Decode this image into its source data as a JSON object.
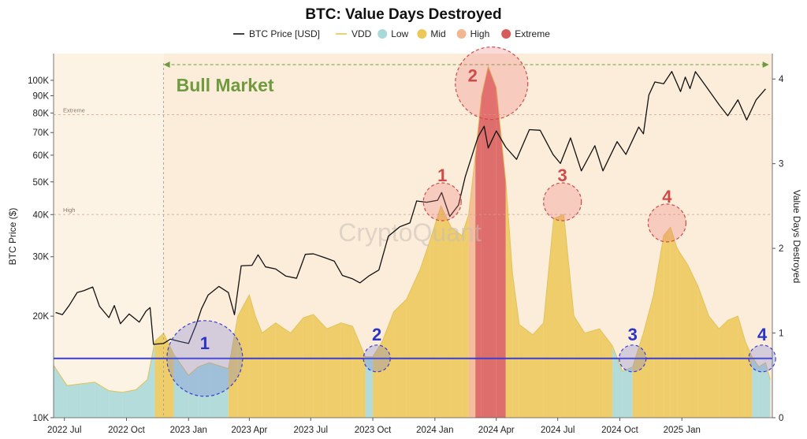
{
  "chart_data": {
    "type": "area",
    "title": "BTC: Value Days Destroyed",
    "ylabel_left": "BTC Price ($)",
    "ylabel_right": "Value Days Destroyed",
    "x_ticks": [
      "2022 Jul",
      "2022 Oct",
      "2023 Jan",
      "2023 Apr",
      "2023 Jul",
      "2023 Oct",
      "2024 Jan",
      "2024 Apr",
      "2024 Jul",
      "2024 Oct",
      "2025 Jan"
    ],
    "x_range": [
      "2022-06-15",
      "2025-05-15"
    ],
    "y_left_scale": "log",
    "y_left_range": [
      10000,
      120000
    ],
    "y_left_ticks": [
      {
        "label": "10K",
        "value": 10000
      },
      {
        "label": "20K",
        "value": 20000
      },
      {
        "label": "30K",
        "value": 30000
      },
      {
        "label": "40K",
        "value": 40000
      },
      {
        "label": "50K",
        "value": 50000
      },
      {
        "label": "60K",
        "value": 60000
      },
      {
        "label": "70K",
        "value": 70000
      },
      {
        "label": "80K",
        "value": 80000
      },
      {
        "label": "90K",
        "value": 90000
      },
      {
        "label": "100K",
        "value": 100000
      }
    ],
    "y_right_range": [
      0,
      4.3
    ],
    "y_right_ticks": [
      0,
      1,
      2,
      3,
      4
    ],
    "legend": {
      "placement": "top-center",
      "items": [
        {
          "label": "BTC Price [USD]",
          "type": "line",
          "color": "#111111"
        },
        {
          "label": "VDD",
          "type": "line",
          "color": "#e2c35a"
        },
        {
          "label": "Low",
          "type": "dot",
          "color": "#a9d8d8"
        },
        {
          "label": "Mid",
          "type": "dot",
          "color": "#ecc85a"
        },
        {
          "label": "High",
          "type": "dot",
          "color": "#f2b792"
        },
        {
          "label": "Extreme",
          "type": "dot",
          "color": "#d95c5c"
        }
      ]
    },
    "thresholds": [
      {
        "label": "Extreme",
        "vdd": 3.58
      },
      {
        "label": "High",
        "vdd": 2.4
      }
    ],
    "blue_line_vdd": 0.7,
    "bull_market": {
      "label": "Bull Market",
      "start": "2022-11-25",
      "end": "2025-05-10"
    },
    "watermark": "CryptoQuant",
    "series": [
      {
        "name": "BTC Price [USD]",
        "points": [
          [
            "2022-06-18",
            20500
          ],
          [
            "2022-06-28",
            20200
          ],
          [
            "2022-07-08",
            21500
          ],
          [
            "2022-07-20",
            23500
          ],
          [
            "2022-07-30",
            23800
          ],
          [
            "2022-08-12",
            24400
          ],
          [
            "2022-08-22",
            21400
          ],
          [
            "2022-09-05",
            19800
          ],
          [
            "2022-09-13",
            21500
          ],
          [
            "2022-09-22",
            19000
          ],
          [
            "2022-10-05",
            20300
          ],
          [
            "2022-10-20",
            19200
          ],
          [
            "2022-10-30",
            20700
          ],
          [
            "2022-11-05",
            21200
          ],
          [
            "2022-11-10",
            16500
          ],
          [
            "2022-11-25",
            16600
          ],
          [
            "2022-12-05",
            17100
          ],
          [
            "2022-12-20",
            16800
          ],
          [
            "2023-01-01",
            16600
          ],
          [
            "2023-01-12",
            18800
          ],
          [
            "2023-01-20",
            21000
          ],
          [
            "2023-01-30",
            23100
          ],
          [
            "2023-02-15",
            24500
          ],
          [
            "2023-03-01",
            23500
          ],
          [
            "2023-03-10",
            20200
          ],
          [
            "2023-03-20",
            28200
          ],
          [
            "2023-04-05",
            28300
          ],
          [
            "2023-04-14",
            30400
          ],
          [
            "2023-04-25",
            28000
          ],
          [
            "2023-05-10",
            27600
          ],
          [
            "2023-05-25",
            26300
          ],
          [
            "2023-06-10",
            25900
          ],
          [
            "2023-06-23",
            30500
          ],
          [
            "2023-07-05",
            30600
          ],
          [
            "2023-07-20",
            29900
          ],
          [
            "2023-08-05",
            29100
          ],
          [
            "2023-08-17",
            26400
          ],
          [
            "2023-09-01",
            25800
          ],
          [
            "2023-09-12",
            25100
          ],
          [
            "2023-09-25",
            26300
          ],
          [
            "2023-10-10",
            27400
          ],
          [
            "2023-10-24",
            34500
          ],
          [
            "2023-11-10",
            36800
          ],
          [
            "2023-11-25",
            37800
          ],
          [
            "2023-12-05",
            43900
          ],
          [
            "2023-12-20",
            43500
          ],
          [
            "2024-01-05",
            44100
          ],
          [
            "2024-01-11",
            46500
          ],
          [
            "2024-01-23",
            39500
          ],
          [
            "2024-02-05",
            42700
          ],
          [
            "2024-02-15",
            51800
          ],
          [
            "2024-02-28",
            62500
          ],
          [
            "2024-03-05",
            68000
          ],
          [
            "2024-03-14",
            73100
          ],
          [
            "2024-03-20",
            63000
          ],
          [
            "2024-04-01",
            70800
          ],
          [
            "2024-04-15",
            63400
          ],
          [
            "2024-05-01",
            58300
          ],
          [
            "2024-05-20",
            71400
          ],
          [
            "2024-06-05",
            71100
          ],
          [
            "2024-06-24",
            60300
          ],
          [
            "2024-07-05",
            56700
          ],
          [
            "2024-07-20",
            67500
          ],
          [
            "2024-08-05",
            53900
          ],
          [
            "2024-08-25",
            64000
          ],
          [
            "2024-09-06",
            53900
          ],
          [
            "2024-09-27",
            65800
          ],
          [
            "2024-10-10",
            60300
          ],
          [
            "2024-10-29",
            72700
          ],
          [
            "2024-11-05",
            69400
          ],
          [
            "2024-11-13",
            90400
          ],
          [
            "2024-11-22",
            98900
          ],
          [
            "2024-12-05",
            97700
          ],
          [
            "2024-12-17",
            106200
          ],
          [
            "2024-12-30",
            92600
          ],
          [
            "2025-01-06",
            102200
          ],
          [
            "2025-01-13",
            94500
          ],
          [
            "2025-01-21",
            106100
          ],
          [
            "2025-02-03",
            97700
          ],
          [
            "2025-02-26",
            84200
          ],
          [
            "2025-03-10",
            78500
          ],
          [
            "2025-03-25",
            87500
          ],
          [
            "2025-04-07",
            76300
          ],
          [
            "2025-04-21",
            87500
          ],
          [
            "2025-05-05",
            94300
          ]
        ]
      },
      {
        "name": "VDD",
        "points": [
          [
            "2022-06-15",
            0.62
          ],
          [
            "2022-07-05",
            0.38
          ],
          [
            "2022-07-25",
            0.4
          ],
          [
            "2022-08-15",
            0.42
          ],
          [
            "2022-09-05",
            0.32
          ],
          [
            "2022-09-25",
            0.3
          ],
          [
            "2022-10-15",
            0.33
          ],
          [
            "2022-11-01",
            0.45
          ],
          [
            "2022-11-12",
            0.9
          ],
          [
            "2022-11-25",
            1.0
          ],
          [
            "2022-12-10",
            0.75
          ],
          [
            "2023-01-01",
            0.5
          ],
          [
            "2023-01-15",
            0.6
          ],
          [
            "2023-02-01",
            0.65
          ],
          [
            "2023-03-01",
            0.58
          ],
          [
            "2023-03-15",
            1.2
          ],
          [
            "2023-04-01",
            1.45
          ],
          [
            "2023-04-10",
            1.2
          ],
          [
            "2023-04-20",
            1.0
          ],
          [
            "2023-05-10",
            1.12
          ],
          [
            "2023-06-01",
            1.0
          ],
          [
            "2023-06-20",
            1.18
          ],
          [
            "2023-07-05",
            1.22
          ],
          [
            "2023-07-25",
            1.05
          ],
          [
            "2023-08-15",
            1.12
          ],
          [
            "2023-09-01",
            1.08
          ],
          [
            "2023-09-20",
            0.72
          ],
          [
            "2023-10-01",
            0.72
          ],
          [
            "2023-10-15",
            0.9
          ],
          [
            "2023-11-01",
            1.25
          ],
          [
            "2023-11-20",
            1.4
          ],
          [
            "2023-12-10",
            1.75
          ],
          [
            "2023-12-25",
            2.1
          ],
          [
            "2024-01-10",
            2.5
          ],
          [
            "2024-01-25",
            2.25
          ],
          [
            "2024-02-10",
            2.15
          ],
          [
            "2024-02-20",
            2.4
          ],
          [
            "2024-03-01",
            3.1
          ],
          [
            "2024-03-10",
            3.8
          ],
          [
            "2024-03-20",
            4.15
          ],
          [
            "2024-04-01",
            3.9
          ],
          [
            "2024-04-15",
            2.8
          ],
          [
            "2024-04-25",
            1.7
          ],
          [
            "2024-05-05",
            1.1
          ],
          [
            "2024-05-25",
            0.98
          ],
          [
            "2024-06-10",
            1.12
          ],
          [
            "2024-06-25",
            2.35
          ],
          [
            "2024-07-10",
            2.4
          ],
          [
            "2024-07-25",
            1.2
          ],
          [
            "2024-08-10",
            1.0
          ],
          [
            "2024-09-01",
            1.05
          ],
          [
            "2024-09-20",
            0.85
          ],
          [
            "2024-10-05",
            0.55
          ],
          [
            "2024-10-20",
            0.6
          ],
          [
            "2024-11-05",
            1.0
          ],
          [
            "2024-11-20",
            1.45
          ],
          [
            "2024-12-05",
            2.15
          ],
          [
            "2024-12-15",
            2.25
          ],
          [
            "2024-12-25",
            2.0
          ],
          [
            "2025-01-10",
            1.8
          ],
          [
            "2025-01-25",
            1.55
          ],
          [
            "2025-02-10",
            1.2
          ],
          [
            "2025-02-25",
            1.05
          ],
          [
            "2025-03-10",
            1.15
          ],
          [
            "2025-03-25",
            1.2
          ],
          [
            "2025-04-05",
            0.9
          ],
          [
            "2025-04-15",
            0.72
          ],
          [
            "2025-04-25",
            0.6
          ],
          [
            "2025-05-05",
            0.65
          ],
          [
            "2025-05-12",
            0.45
          ]
        ]
      }
    ],
    "annotations": [
      {
        "label": "1",
        "group": "red",
        "date": "2024-01-12",
        "vdd": 2.55
      },
      {
        "label": "2",
        "group": "red",
        "date": "2024-03-25",
        "vdd": 3.95
      },
      {
        "label": "3",
        "group": "red",
        "date": "2024-07-08",
        "vdd": 2.55
      },
      {
        "label": "4",
        "group": "red",
        "date": "2024-12-10",
        "vdd": 2.3
      },
      {
        "label": "1",
        "group": "blue",
        "date": "2023-01-25",
        "vdd": 0.7
      },
      {
        "label": "2",
        "group": "blue",
        "date": "2023-10-07",
        "vdd": 0.7
      },
      {
        "label": "3",
        "group": "blue",
        "date": "2024-10-20",
        "vdd": 0.7
      },
      {
        "label": "4",
        "group": "blue",
        "date": "2025-04-30",
        "vdd": 0.7
      }
    ]
  }
}
